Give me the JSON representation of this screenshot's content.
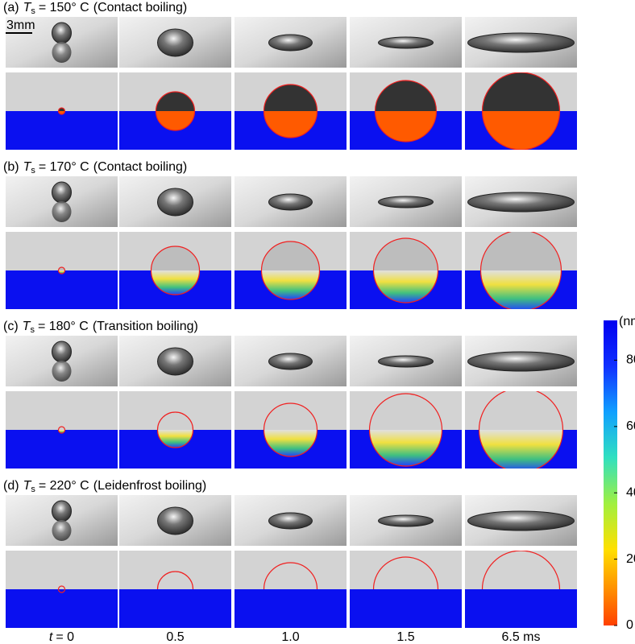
{
  "figure": {
    "scale_bar": "3mm",
    "rows": [
      {
        "label": "(a)",
        "symbol": "T",
        "subscript": "s",
        "condition": "= 150° C",
        "regime": "(Contact boiling)"
      },
      {
        "label": "(b)",
        "symbol": "T",
        "subscript": "s",
        "condition": "= 170° C",
        "regime": "(Contact boiling)"
      },
      {
        "label": "(c)",
        "symbol": "T",
        "subscript": "s",
        "condition": "= 180° C",
        "regime": "(Transition boiling)"
      },
      {
        "label": "(d)",
        "symbol": "T",
        "subscript": "s",
        "condition": "= 220° C",
        "regime": "(Leidenfrost boiling)"
      }
    ],
    "time_axis": {
      "symbol": "t",
      "labels": [
        "= 0",
        "0.5",
        "1.0",
        "1.5",
        "6.5 ms"
      ]
    },
    "colorbar": {
      "label": "(nm)",
      "lim": [
        0,
        92
      ],
      "ticks": [
        0,
        20,
        40,
        60,
        80
      ]
    }
  }
}
